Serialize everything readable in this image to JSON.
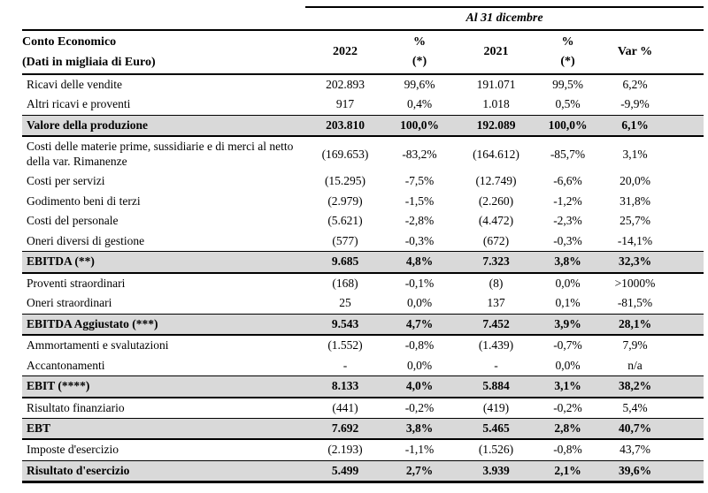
{
  "page": {
    "background_color": "#ffffff",
    "text_color": "#000000",
    "shade_color": "#d9d9d9"
  },
  "table": {
    "spanner": "Al 31 dicembre",
    "title_line1": "Conto Economico",
    "title_line2": "(Dati in migliaia di Euro)",
    "columns": {
      "year1": "2022",
      "pct": "%",
      "pct_note": "(*)",
      "year2": "2021",
      "var": "Var %"
    },
    "rows": [
      {
        "type": "normal",
        "label": "Ricavi delle vendite",
        "v2022": "202.893",
        "p2022": "99,6%",
        "v2021": "191.071",
        "p2021": "99,5%",
        "var": "6,2%"
      },
      {
        "type": "normal",
        "label": "Altri ricavi e proventi",
        "v2022": "917",
        "p2022": "0,4%",
        "v2021": "1.018",
        "p2021": "0,5%",
        "var": "-9,9%"
      },
      {
        "type": "total",
        "label": "Valore della produzione",
        "v2022": "203.810",
        "p2022": "100,0%",
        "v2021": "192.089",
        "p2021": "100,0%",
        "var": "6,1%"
      },
      {
        "type": "normal",
        "label": "Costi delle materie prime, sussidiarie e di merci al netto della var. Rimanenze",
        "v2022": "(169.653)",
        "p2022": "-83,2%",
        "v2021": "(164.612)",
        "p2021": "-85,7%",
        "var": "3,1%"
      },
      {
        "type": "normal",
        "label": "Costi per servizi",
        "v2022": "(15.295)",
        "p2022": "-7,5%",
        "v2021": "(12.749)",
        "p2021": "-6,6%",
        "var": "20,0%"
      },
      {
        "type": "normal",
        "label": "Godimento beni di terzi",
        "v2022": "(2.979)",
        "p2022": "-1,5%",
        "v2021": "(2.260)",
        "p2021": "-1,2%",
        "var": "31,8%"
      },
      {
        "type": "normal",
        "label": "Costi del personale",
        "v2022": "(5.621)",
        "p2022": "-2,8%",
        "v2021": "(4.472)",
        "p2021": "-2,3%",
        "var": "25,7%"
      },
      {
        "type": "normal",
        "label": "Oneri diversi di gestione",
        "v2022": "(577)",
        "p2022": "-0,3%",
        "v2021": "(672)",
        "p2021": "-0,3%",
        "var": "-14,1%"
      },
      {
        "type": "total",
        "label": "EBITDA (**)",
        "v2022": "9.685",
        "p2022": "4,8%",
        "v2021": "7.323",
        "p2021": "3,8%",
        "var": "32,3%"
      },
      {
        "type": "normal",
        "label": "Proventi straordinari",
        "v2022": "(168)",
        "p2022": "-0,1%",
        "v2021": "(8)",
        "p2021": "0,0%",
        "var": ">1000%"
      },
      {
        "type": "normal",
        "label": "Oneri straordinari",
        "v2022": "25",
        "p2022": "0,0%",
        "v2021": "137",
        "p2021": "0,1%",
        "var": "-81,5%"
      },
      {
        "type": "total",
        "label": "EBITDA Aggiustato (***)",
        "v2022": "9.543",
        "p2022": "4,7%",
        "v2021": "7.452",
        "p2021": "3,9%",
        "var": "28,1%"
      },
      {
        "type": "normal",
        "label": "Ammortamenti e svalutazioni",
        "v2022": "(1.552)",
        "p2022": "-0,8%",
        "v2021": "(1.439)",
        "p2021": "-0,7%",
        "var": "7,9%"
      },
      {
        "type": "normal",
        "label": "Accantonamenti",
        "v2022": "-",
        "p2022": "0,0%",
        "v2021": "-",
        "p2021": "0,0%",
        "var": "n/a"
      },
      {
        "type": "total",
        "label": "EBIT (****)",
        "v2022": "8.133",
        "p2022": "4,0%",
        "v2021": "5.884",
        "p2021": "3,1%",
        "var": "38,2%"
      },
      {
        "type": "normal",
        "label": "Risultato finanziario",
        "v2022": "(441)",
        "p2022": "-0,2%",
        "v2021": "(419)",
        "p2021": "-0,2%",
        "var": "5,4%"
      },
      {
        "type": "total",
        "label": "EBT",
        "v2022": "7.692",
        "p2022": "3,8%",
        "v2021": "5.465",
        "p2021": "2,8%",
        "var": "40,7%"
      },
      {
        "type": "normal",
        "label": "Imposte d'esercizio",
        "v2022": "(2.193)",
        "p2022": "-1,1%",
        "v2021": "(1.526)",
        "p2021": "-0,8%",
        "var": "43,7%"
      },
      {
        "type": "total",
        "label": "Risultato d'esercizio",
        "v2022": "5.499",
        "p2022": "2,7%",
        "v2021": "3.939",
        "p2021": "2,1%",
        "var": "39,6%"
      }
    ]
  }
}
